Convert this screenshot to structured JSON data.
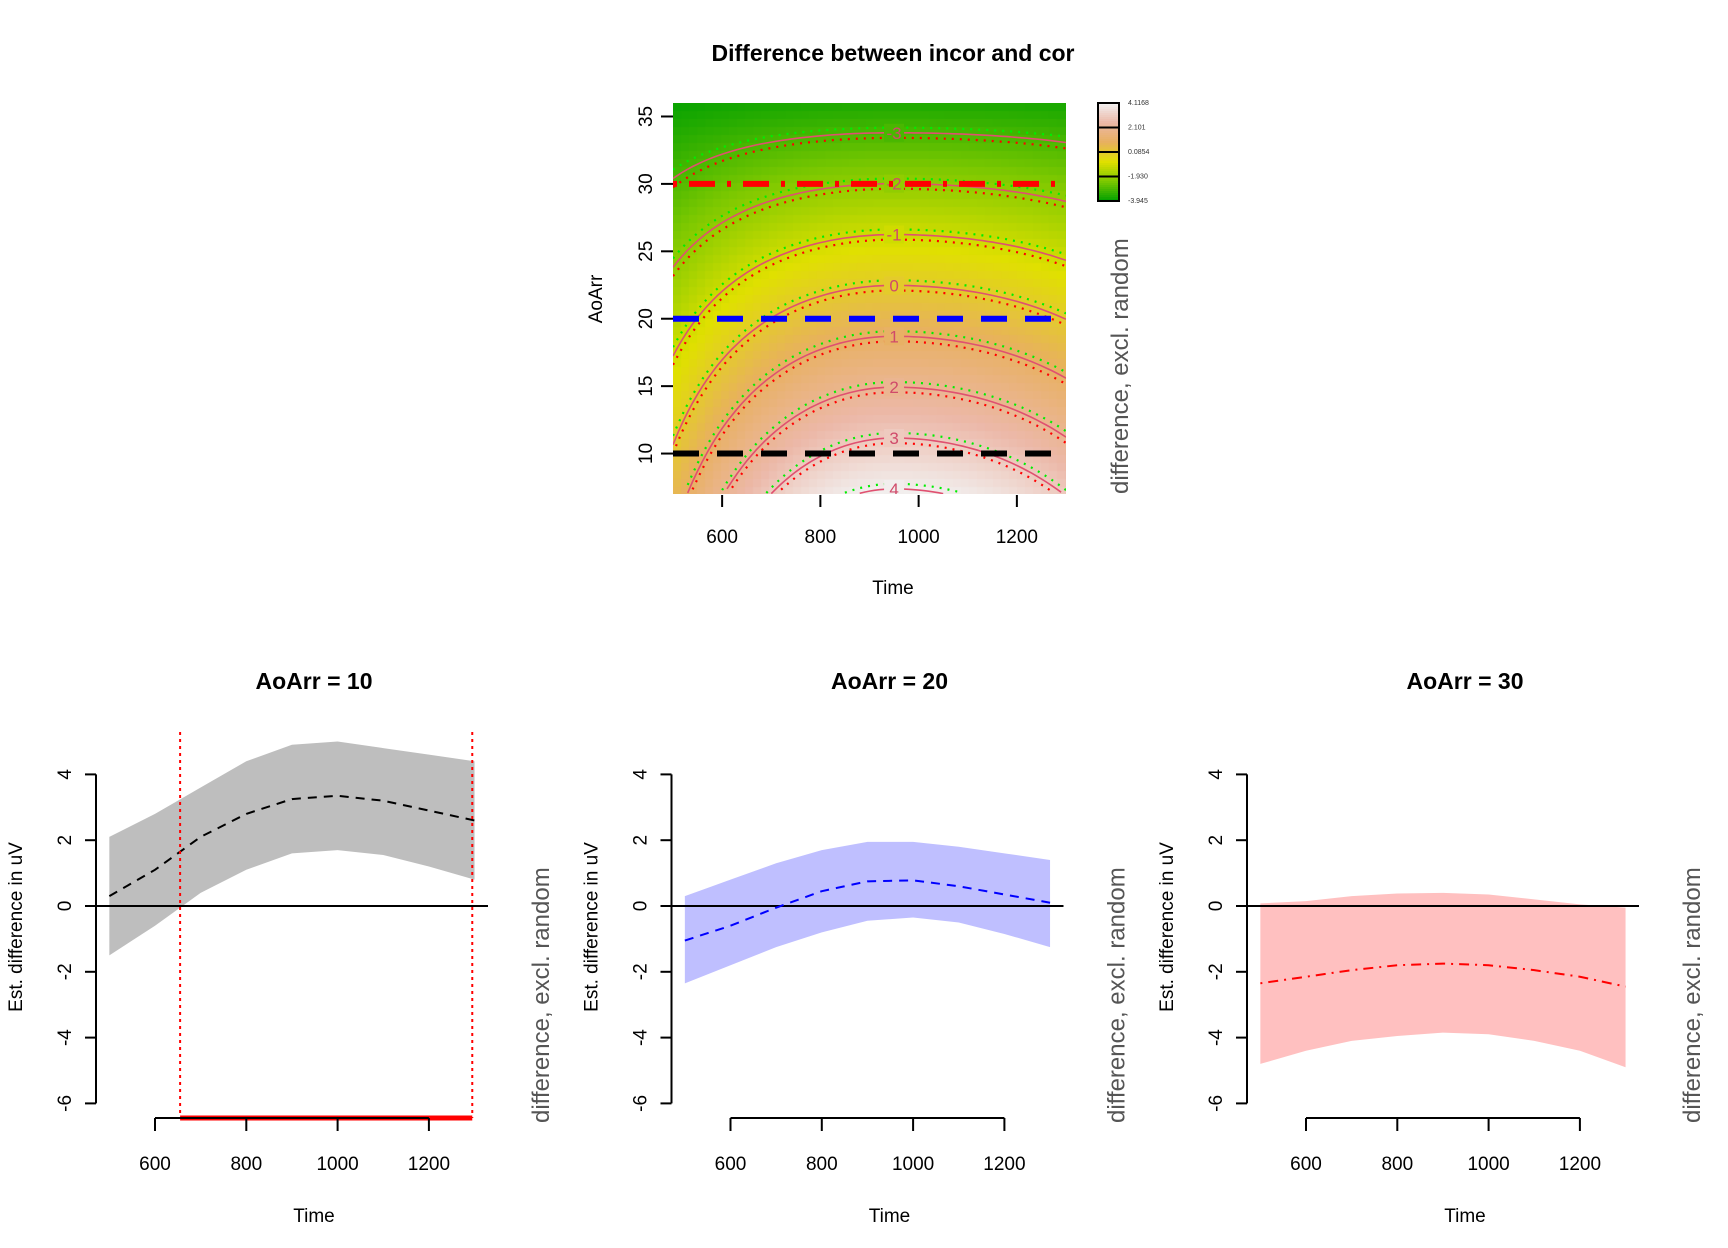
{
  "chart_data": [
    {
      "type": "heatmap",
      "title": "Difference between incor and cor",
      "xlabel": "Time",
      "ylabel": "AoArr",
      "zlabel": "difference, excl. random",
      "xlim": [
        500,
        1300
      ],
      "ylim": [
        7,
        36
      ],
      "xticks": [
        "600",
        "800",
        "1000",
        "1200"
      ],
      "yticks": [
        "10",
        "15",
        "20",
        "25",
        "30",
        "35"
      ],
      "zlim": [
        -3.945,
        4.1168
      ],
      "colorbar_labels": [
        "4.1168",
        "2.101",
        "0.0854",
        "-1.930",
        "-3.945"
      ],
      "contour_levels": [
        "-3",
        "-2",
        "-1",
        "0",
        "1",
        "2",
        "3",
        "4"
      ],
      "palette": [
        "#00a000",
        "#7cc800",
        "#e0e000",
        "#e8b060",
        "#ecb8a8",
        "#f2f2f2"
      ],
      "reference_lines": [
        {
          "AoArr": 10,
          "color": "#000000",
          "style": "dashed"
        },
        {
          "AoArr": 20,
          "color": "#0000ff",
          "style": "dashed"
        },
        {
          "AoArr": 30,
          "color": "#ff0000",
          "style": "dotdash"
        }
      ],
      "grid": false
    },
    {
      "type": "line",
      "title": "AoArr = 10",
      "xlabel": "Time",
      "ylabel": "Est. difference in uV",
      "rlabel": "difference, excl. random",
      "xlim": [
        500,
        1300
      ],
      "ylim": [
        -6,
        4
      ],
      "xticks": [
        "600",
        "800",
        "1000",
        "1200"
      ],
      "yticks": [
        "-6",
        "-4",
        "-2",
        "0",
        "2",
        "4"
      ],
      "x": [
        500,
        600,
        700,
        800,
        900,
        1000,
        1100,
        1200,
        1300
      ],
      "fit": [
        0.3,
        1.1,
        2.1,
        2.8,
        3.25,
        3.35,
        3.2,
        2.9,
        2.6
      ],
      "upper": [
        2.1,
        2.8,
        3.6,
        4.4,
        4.9,
        5.0,
        4.8,
        4.6,
        4.4
      ],
      "lower": [
        -1.5,
        -0.6,
        0.4,
        1.1,
        1.6,
        1.7,
        1.55,
        1.2,
        0.8
      ],
      "line_color": "#000000",
      "line_style": "dashed",
      "fill_color": "#bebebe",
      "significant_interval": [
        655,
        1295
      ],
      "significance_color": "#ff0000"
    },
    {
      "type": "line",
      "title": "AoArr = 20",
      "xlabel": "Time",
      "ylabel": "Est. difference in uV",
      "rlabel": "difference, excl. random",
      "xlim": [
        500,
        1300
      ],
      "ylim": [
        -6,
        4
      ],
      "xticks": [
        "600",
        "800",
        "1000",
        "1200"
      ],
      "yticks": [
        "-6",
        "-4",
        "-2",
        "0",
        "2",
        "4"
      ],
      "x": [
        500,
        600,
        700,
        800,
        900,
        1000,
        1100,
        1200,
        1300
      ],
      "fit": [
        -1.05,
        -0.6,
        -0.05,
        0.45,
        0.75,
        0.78,
        0.6,
        0.35,
        0.1
      ],
      "upper": [
        0.3,
        0.8,
        1.3,
        1.7,
        1.95,
        1.95,
        1.8,
        1.6,
        1.4
      ],
      "lower": [
        -2.35,
        -1.8,
        -1.25,
        -0.8,
        -0.45,
        -0.35,
        -0.5,
        -0.85,
        -1.25
      ],
      "line_color": "#0000ff",
      "line_style": "dashed",
      "fill_color": "#bfbfff"
    },
    {
      "type": "line",
      "title": "AoArr = 30",
      "xlabel": "Time",
      "ylabel": "Est. difference in uV",
      "rlabel": "difference, excl. random",
      "xlim": [
        500,
        1300
      ],
      "ylim": [
        -6,
        4
      ],
      "xticks": [
        "600",
        "800",
        "1000",
        "1200"
      ],
      "yticks": [
        "-6",
        "-4",
        "-2",
        "0",
        "2",
        "4"
      ],
      "x": [
        500,
        600,
        700,
        800,
        900,
        1000,
        1100,
        1200,
        1300
      ],
      "fit": [
        -2.35,
        -2.15,
        -1.95,
        -1.8,
        -1.75,
        -1.8,
        -1.95,
        -2.15,
        -2.45
      ],
      "upper": [
        0.08,
        0.15,
        0.3,
        0.38,
        0.4,
        0.35,
        0.2,
        0.05,
        -0.05
      ],
      "lower": [
        -4.8,
        -4.4,
        -4.1,
        -3.95,
        -3.85,
        -3.9,
        -4.1,
        -4.4,
        -4.9
      ],
      "line_color": "#ff0000",
      "line_style": "dotdash",
      "fill_color": "#ffc0c0"
    }
  ]
}
